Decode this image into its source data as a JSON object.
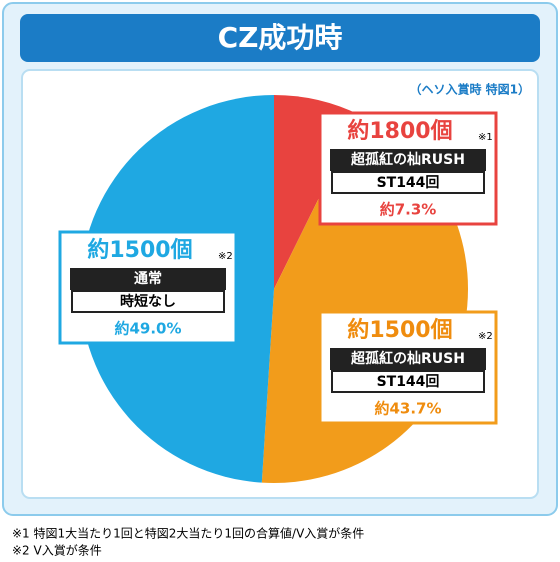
{
  "chart_data": {
    "type": "pie",
    "title": "CZ成功時",
    "subtitle": "（ヘソ入賞時 特図1）",
    "values": [
      7.3,
      43.7,
      49.0
    ],
    "value_labels": [
      "約7.3%",
      "約43.7%",
      "約49.0%"
    ],
    "colors": [
      "#e8433f",
      "#f29c1b",
      "#1fa8e2"
    ],
    "labels": [
      {
        "payout": "約1800個",
        "note": "※1",
        "mode": "超孤紅の杣RUSH",
        "detail": "ST144回"
      },
      {
        "payout": "約1500個",
        "note": "※2",
        "mode": "超孤紅の杣RUSH",
        "detail": "ST144回"
      },
      {
        "payout": "約1500個",
        "note": "※2",
        "mode": "通常",
        "detail": "時短なし"
      }
    ],
    "footnotes": [
      "※1 特図1大当たり1回と特図2大当たり1回の合算値/V入賞が条件",
      "※2 V入賞が条件"
    ]
  }
}
